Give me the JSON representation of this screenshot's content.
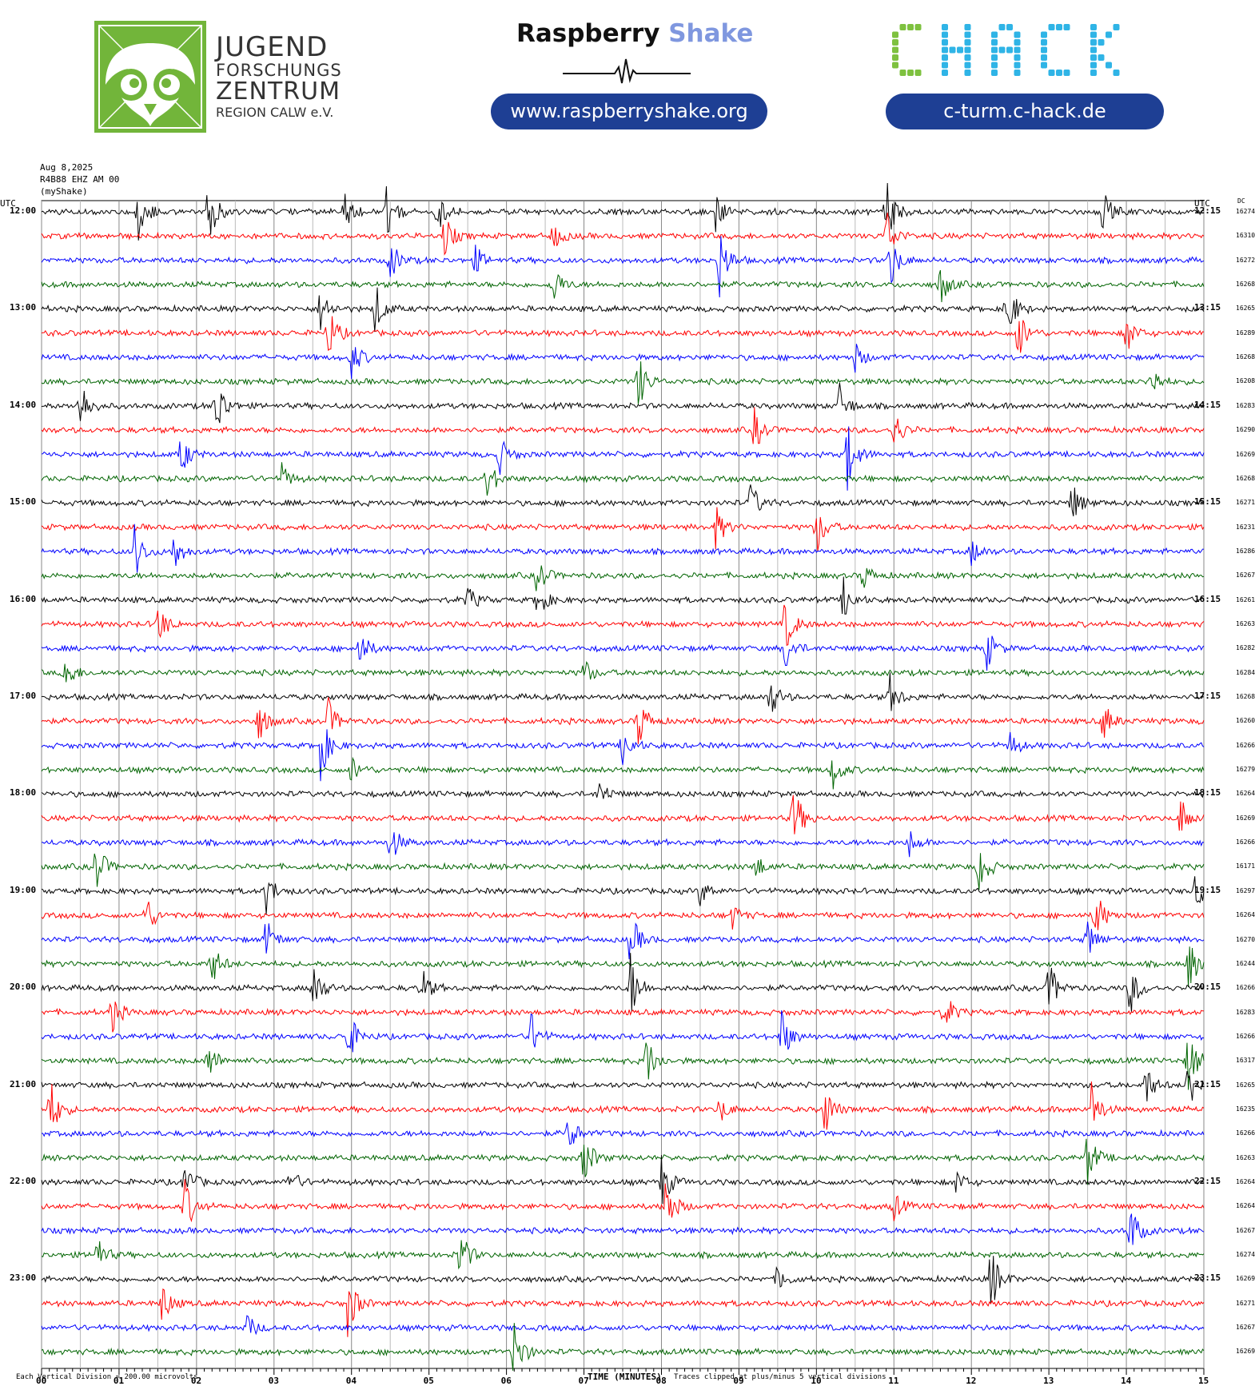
{
  "header": {
    "jfz": {
      "lines": [
        "JUGEND",
        "FORSCHUNGS",
        "ZENTRUM",
        "REGION CALW e.V."
      ]
    },
    "rs": {
      "name_part1": "Raspberry",
      "name_part2": "Shake",
      "url": "www.raspberryshake.org"
    },
    "chack": {
      "logo": "CHACK",
      "url": "c-turm.c-hack.de"
    }
  },
  "meta": {
    "date": "Aug 8,2025",
    "station": "R4B88 EHZ AM 00",
    "source": "(myShake)",
    "left_unit": "UTC",
    "right_unit": "UTC",
    "dc_label": "DC"
  },
  "footer": {
    "scale_note": "Each Vertical Division =  200.00 microvolts",
    "xlabel": "TIME (MINUTES)",
    "clip_note": "Traces clipped at plus/minus 5 vertical divisions"
  },
  "chart_data": {
    "type": "line",
    "title": "",
    "xlabel": "TIME (MINUTES)",
    "x_ticks": [
      "00",
      "01",
      "02",
      "03",
      "04",
      "05",
      "06",
      "07",
      "08",
      "09",
      "10",
      "11",
      "12",
      "13",
      "14",
      "15"
    ],
    "xlim": [
      0,
      15
    ],
    "grid": true,
    "trace_colors": [
      "#000000",
      "#ff0000",
      "#0000ff",
      "#006400"
    ],
    "rows": 48,
    "left_labels": [
      "12:00",
      "",
      "",
      "",
      "13:00",
      "",
      "",
      "",
      "14:00",
      "",
      "",
      "",
      "15:00",
      "",
      "",
      "",
      "16:00",
      "",
      "",
      "",
      "17:00",
      "",
      "",
      "",
      "18:00",
      "",
      "",
      "",
      "19:00",
      "",
      "",
      "",
      "20:00",
      "",
      "",
      "",
      "21:00",
      "",
      "",
      "",
      "22:00",
      "",
      "",
      "",
      "23:00",
      "",
      "",
      ""
    ],
    "right_labels": [
      "12:15",
      "",
      "",
      "",
      "13:15",
      "",
      "",
      "",
      "14:15",
      "",
      "",
      "",
      "15:15",
      "",
      "",
      "",
      "16:15",
      "",
      "",
      "",
      "17:15",
      "",
      "",
      "",
      "18:15",
      "",
      "",
      "",
      "19:15",
      "",
      "",
      "",
      "20:15",
      "",
      "",
      "",
      "21:15",
      "",
      "",
      "",
      "22:15",
      "",
      "",
      "",
      "23:15",
      "",
      "",
      ""
    ],
    "dc_values": [
      "16274",
      "16310",
      "16272",
      "16268",
      "16265",
      "16289",
      "16268",
      "16208",
      "16283",
      "16290",
      "16269",
      "16268",
      "16271",
      "16231",
      "16286",
      "16267",
      "16261",
      "16263",
      "16282",
      "16284",
      "16268",
      "16260",
      "16266",
      "16279",
      "16264",
      "16269",
      "16266",
      "16171",
      "16297",
      "16264",
      "16270",
      "16244",
      "16266",
      "16283",
      "16266",
      "16317",
      "16265",
      "16235",
      "16266",
      "16263",
      "16264",
      "16264",
      "16267",
      "16274",
      "16269",
      "16271",
      "16267",
      "16269"
    ],
    "events": [
      {
        "row": 0,
        "t": 1.25,
        "amp": 5
      },
      {
        "row": 0,
        "t": 2.15,
        "amp": 5
      },
      {
        "row": 0,
        "t": 3.9,
        "amp": 3
      },
      {
        "row": 0,
        "t": 4.45,
        "amp": 4
      },
      {
        "row": 0,
        "t": 5.1,
        "amp": 3
      },
      {
        "row": 0,
        "t": 8.7,
        "amp": 3
      },
      {
        "row": 0,
        "t": 10.9,
        "amp": 5
      },
      {
        "row": 0,
        "t": 13.7,
        "amp": 3
      },
      {
        "row": 1,
        "t": 5.2,
        "amp": 3
      },
      {
        "row": 1,
        "t": 10.9,
        "amp": 4
      },
      {
        "row": 1,
        "t": 6.6,
        "amp": 2
      },
      {
        "row": 2,
        "t": 8.75,
        "amp": 5
      },
      {
        "row": 2,
        "t": 10.95,
        "amp": 4
      },
      {
        "row": 2,
        "t": 4.5,
        "amp": 3
      },
      {
        "row": 2,
        "t": 5.6,
        "amp": 2
      },
      {
        "row": 3,
        "t": 6.6,
        "amp": 3
      },
      {
        "row": 3,
        "t": 11.6,
        "amp": 3
      },
      {
        "row": 4,
        "t": 4.3,
        "amp": 4
      },
      {
        "row": 4,
        "t": 12.45,
        "amp": 5
      },
      {
        "row": 4,
        "t": 3.6,
        "amp": 3
      },
      {
        "row": 5,
        "t": 3.7,
        "amp": 4
      },
      {
        "row": 5,
        "t": 12.6,
        "amp": 4
      },
      {
        "row": 5,
        "t": 14.0,
        "amp": 3
      },
      {
        "row": 6,
        "t": 4.0,
        "amp": 3
      },
      {
        "row": 6,
        "t": 10.5,
        "amp": 2
      },
      {
        "row": 7,
        "t": 7.7,
        "amp": 4
      },
      {
        "row": 7,
        "t": 14.3,
        "amp": 3
      },
      {
        "row": 8,
        "t": 0.5,
        "amp": 4
      },
      {
        "row": 8,
        "t": 2.25,
        "amp": 5
      },
      {
        "row": 8,
        "t": 10.3,
        "amp": 3
      },
      {
        "row": 9,
        "t": 9.2,
        "amp": 3
      },
      {
        "row": 9,
        "t": 11.0,
        "amp": 3
      },
      {
        "row": 10,
        "t": 10.4,
        "amp": 5
      },
      {
        "row": 10,
        "t": 5.9,
        "amp": 3
      },
      {
        "row": 10,
        "t": 1.8,
        "amp": 3
      },
      {
        "row": 11,
        "t": 5.75,
        "amp": 3
      },
      {
        "row": 11,
        "t": 3.1,
        "amp": 2
      },
      {
        "row": 12,
        "t": 9.15,
        "amp": 3
      },
      {
        "row": 12,
        "t": 13.3,
        "amp": 3
      },
      {
        "row": 13,
        "t": 10.0,
        "amp": 4
      },
      {
        "row": 13,
        "t": 8.7,
        "amp": 3
      },
      {
        "row": 14,
        "t": 1.2,
        "amp": 4
      },
      {
        "row": 14,
        "t": 1.7,
        "amp": 3
      },
      {
        "row": 14,
        "t": 12.0,
        "amp": 2
      },
      {
        "row": 15,
        "t": 6.4,
        "amp": 3
      },
      {
        "row": 15,
        "t": 10.6,
        "amp": 2
      },
      {
        "row": 16,
        "t": 6.4,
        "amp": 3
      },
      {
        "row": 16,
        "t": 5.5,
        "amp": 2
      },
      {
        "row": 16,
        "t": 10.35,
        "amp": 3
      },
      {
        "row": 17,
        "t": 1.5,
        "amp": 3
      },
      {
        "row": 17,
        "t": 9.6,
        "amp": 4
      },
      {
        "row": 18,
        "t": 9.6,
        "amp": 3
      },
      {
        "row": 18,
        "t": 12.2,
        "amp": 3
      },
      {
        "row": 18,
        "t": 4.1,
        "amp": 3
      },
      {
        "row": 19,
        "t": 0.3,
        "amp": 3
      },
      {
        "row": 19,
        "t": 7.0,
        "amp": 2
      },
      {
        "row": 20,
        "t": 9.4,
        "amp": 3
      },
      {
        "row": 20,
        "t": 10.95,
        "amp": 3
      },
      {
        "row": 21,
        "t": 7.7,
        "amp": 4
      },
      {
        "row": 21,
        "t": 3.7,
        "amp": 3
      },
      {
        "row": 21,
        "t": 2.8,
        "amp": 3
      },
      {
        "row": 21,
        "t": 13.7,
        "amp": 3
      },
      {
        "row": 22,
        "t": 3.6,
        "amp": 5
      },
      {
        "row": 22,
        "t": 7.5,
        "amp": 3
      },
      {
        "row": 22,
        "t": 12.5,
        "amp": 2
      },
      {
        "row": 23,
        "t": 10.2,
        "amp": 3
      },
      {
        "row": 23,
        "t": 4.0,
        "amp": 2
      },
      {
        "row": 24,
        "t": 7.2,
        "amp": 2
      },
      {
        "row": 25,
        "t": 9.7,
        "amp": 5
      },
      {
        "row": 25,
        "t": 14.7,
        "amp": 3
      },
      {
        "row": 26,
        "t": 4.5,
        "amp": 3
      },
      {
        "row": 26,
        "t": 11.2,
        "amp": 2
      },
      {
        "row": 27,
        "t": 0.7,
        "amp": 4
      },
      {
        "row": 27,
        "t": 12.1,
        "amp": 4
      },
      {
        "row": 27,
        "t": 9.2,
        "amp": 2
      },
      {
        "row": 28,
        "t": 2.9,
        "amp": 3
      },
      {
        "row": 28,
        "t": 8.5,
        "amp": 2
      },
      {
        "row": 28,
        "t": 14.9,
        "amp": 3
      },
      {
        "row": 29,
        "t": 1.35,
        "amp": 3
      },
      {
        "row": 29,
        "t": 13.6,
        "amp": 4
      },
      {
        "row": 29,
        "t": 8.9,
        "amp": 2
      },
      {
        "row": 30,
        "t": 7.6,
        "amp": 4
      },
      {
        "row": 30,
        "t": 13.5,
        "amp": 3
      },
      {
        "row": 30,
        "t": 2.9,
        "amp": 3
      },
      {
        "row": 31,
        "t": 2.2,
        "amp": 3
      },
      {
        "row": 31,
        "t": 14.8,
        "amp": 4
      },
      {
        "row": 32,
        "t": 3.5,
        "amp": 4
      },
      {
        "row": 32,
        "t": 7.6,
        "amp": 5
      },
      {
        "row": 32,
        "t": 14.05,
        "amp": 4
      },
      {
        "row": 32,
        "t": 13.0,
        "amp": 4
      },
      {
        "row": 32,
        "t": 4.9,
        "amp": 3
      },
      {
        "row": 33,
        "t": 0.9,
        "amp": 3
      },
      {
        "row": 33,
        "t": 11.65,
        "amp": 3
      },
      {
        "row": 34,
        "t": 3.95,
        "amp": 4
      },
      {
        "row": 34,
        "t": 6.3,
        "amp": 4
      },
      {
        "row": 34,
        "t": 9.55,
        "amp": 4
      },
      {
        "row": 35,
        "t": 7.8,
        "amp": 4
      },
      {
        "row": 35,
        "t": 14.8,
        "amp": 5
      },
      {
        "row": 35,
        "t": 2.15,
        "amp": 3
      },
      {
        "row": 36,
        "t": 14.25,
        "amp": 3
      },
      {
        "row": 36,
        "t": 14.8,
        "amp": 4
      },
      {
        "row": 37,
        "t": 0.1,
        "amp": 5
      },
      {
        "row": 37,
        "t": 10.1,
        "amp": 4
      },
      {
        "row": 37,
        "t": 13.55,
        "amp": 4
      },
      {
        "row": 37,
        "t": 8.75,
        "amp": 2
      },
      {
        "row": 38,
        "t": 6.8,
        "amp": 3
      },
      {
        "row": 39,
        "t": 7.0,
        "amp": 4
      },
      {
        "row": 39,
        "t": 13.5,
        "amp": 4
      },
      {
        "row": 40,
        "t": 1.85,
        "amp": 3
      },
      {
        "row": 40,
        "t": 8.0,
        "amp": 4
      },
      {
        "row": 40,
        "t": 3.2,
        "amp": 2
      },
      {
        "row": 40,
        "t": 11.8,
        "amp": 2
      },
      {
        "row": 41,
        "t": 1.85,
        "amp": 4
      },
      {
        "row": 41,
        "t": 8.05,
        "amp": 5
      },
      {
        "row": 41,
        "t": 11.0,
        "amp": 2
      },
      {
        "row": 42,
        "t": 14.05,
        "amp": 4
      },
      {
        "row": 43,
        "t": 5.4,
        "amp": 4
      },
      {
        "row": 43,
        "t": 0.7,
        "amp": 3
      },
      {
        "row": 44,
        "t": 12.25,
        "amp": 5
      },
      {
        "row": 44,
        "t": 9.5,
        "amp": 2
      },
      {
        "row": 45,
        "t": 3.95,
        "amp": 5
      },
      {
        "row": 45,
        "t": 1.55,
        "amp": 3
      },
      {
        "row": 46,
        "t": 2.65,
        "amp": 2
      },
      {
        "row": 47,
        "t": 6.1,
        "amp": 5
      }
    ]
  }
}
